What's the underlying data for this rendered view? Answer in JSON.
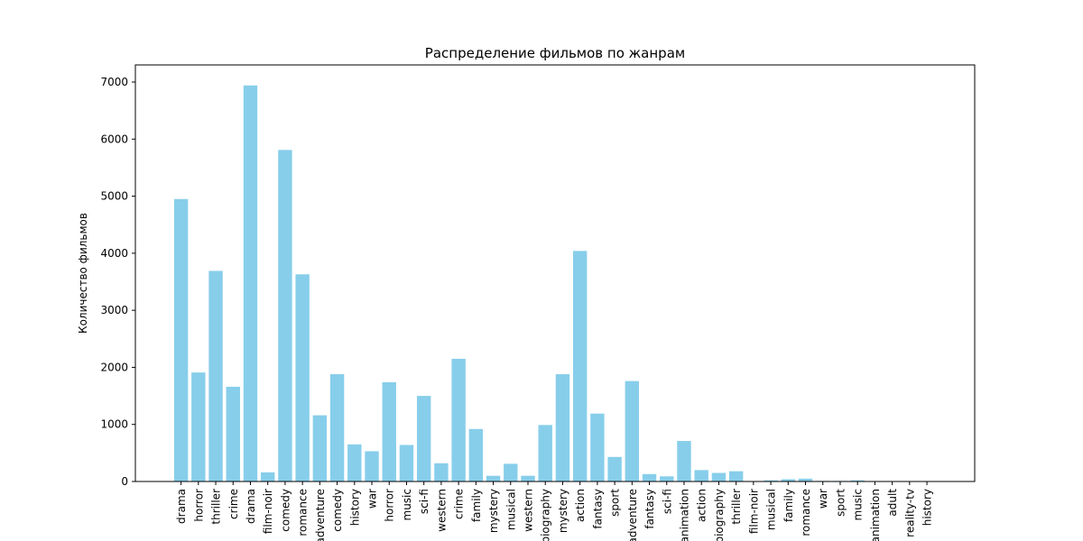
{
  "chart_data": {
    "type": "bar",
    "title": "Распределение фильмов по жанрам",
    "xlabel": "",
    "ylabel": "Количество фильмов",
    "bar_color": "#87ceeb",
    "ylim": [
      0,
      7300
    ],
    "yticks": [
      0,
      1000,
      2000,
      3000,
      4000,
      5000,
      6000,
      7000
    ],
    "grid": false,
    "categories": [
      "drama",
      "horror",
      "thriller",
      "crime",
      "drama",
      "film-noir",
      "comedy",
      "romance",
      "adventure",
      "comedy",
      "history",
      "war",
      "horror",
      "music",
      "sci-fi",
      "western",
      "crime",
      "family",
      "mystery",
      "musical",
      "western",
      "biography",
      "mystery",
      "action",
      "fantasy",
      "sport",
      "adventure",
      "fantasy",
      "sci-fi",
      "animation",
      "action",
      "biography",
      "thriller",
      "film-noir",
      "musical",
      "family",
      "romance",
      "war",
      "sport",
      "music",
      "animation",
      "adult",
      "reality-tv",
      "history"
    ],
    "values": [
      4950,
      1910,
      3690,
      1660,
      6940,
      160,
      5810,
      3630,
      1160,
      1880,
      650,
      530,
      1740,
      640,
      1500,
      320,
      2150,
      920,
      100,
      310,
      100,
      990,
      1880,
      4040,
      1190,
      430,
      1760,
      130,
      90,
      710,
      200,
      150,
      180,
      5,
      20,
      40,
      50,
      10,
      10,
      20,
      5,
      5,
      2,
      5
    ]
  }
}
